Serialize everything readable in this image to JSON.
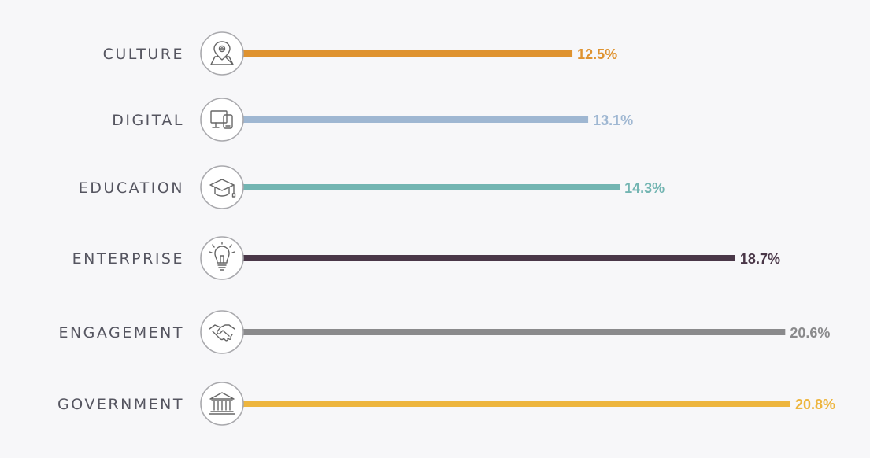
{
  "chart_data": {
    "type": "bar",
    "orientation": "horizontal",
    "title": "",
    "xlabel": "",
    "ylabel": "",
    "xlim": [
      0,
      20.8
    ],
    "grid": false,
    "categories": [
      "CULTURE",
      "DIGITAL",
      "EDUCATION",
      "ENTERPRISE",
      "ENGAGEMENT",
      "GOVERNMENT"
    ],
    "values": [
      12.5,
      13.1,
      14.3,
      18.7,
      20.6,
      20.8
    ],
    "value_labels": [
      "12.5%",
      "13.1%",
      "14.3%",
      "18.7%",
      "20.6%",
      "20.8%"
    ],
    "colors": [
      "#df9330",
      "#9fb7d2",
      "#73b5b2",
      "#4a3748",
      "#8a8a8c",
      "#edb53e"
    ],
    "icons": [
      "map-pin-icon",
      "devices-icon",
      "graduation-cap-icon",
      "lightbulb-icon",
      "handshake-icon",
      "government-building-icon"
    ]
  }
}
